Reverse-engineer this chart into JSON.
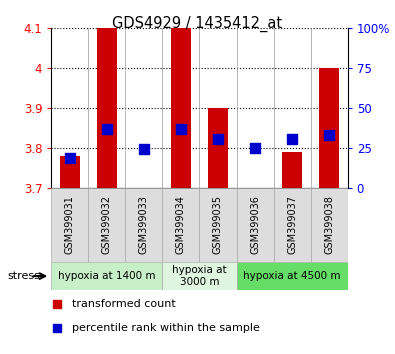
{
  "title": "GDS4929 / 1435412_at",
  "samples": [
    "GSM399031",
    "GSM399032",
    "GSM399033",
    "GSM399034",
    "GSM399035",
    "GSM399036",
    "GSM399037",
    "GSM399038"
  ],
  "transformed_count_bottom": [
    3.7,
    3.7,
    3.7,
    3.7,
    3.7,
    3.7,
    3.7,
    3.7
  ],
  "transformed_count_top": [
    3.78,
    4.1,
    3.7,
    4.1,
    3.9,
    3.7,
    3.79,
    4.0
  ],
  "percentile_rank": [
    3.775,
    3.848,
    3.796,
    3.848,
    3.822,
    3.8,
    3.822,
    3.832
  ],
  "ylim_left": [
    3.7,
    4.1
  ],
  "ylim_right": [
    0,
    100
  ],
  "yticks_left": [
    3.7,
    3.8,
    3.9,
    4.0,
    4.1
  ],
  "yticks_right": [
    0,
    25,
    50,
    75,
    100
  ],
  "ytick_labels_left": [
    "3.7",
    "3.8",
    "3.9",
    "4",
    "4.1"
  ],
  "ytick_labels_right": [
    "0",
    "25",
    "50",
    "75",
    "100%"
  ],
  "groups": [
    {
      "label": "hypoxia at 1400 m",
      "start": 0,
      "end": 3,
      "color": "#c8f0c8"
    },
    {
      "label": "hypoxia at\n3000 m",
      "start": 3,
      "end": 5,
      "color": "#dff5df"
    },
    {
      "label": "hypoxia at 4500 m",
      "start": 5,
      "end": 8,
      "color": "#66dd66"
    }
  ],
  "bar_color": "#cc0000",
  "point_color": "#0000cc",
  "bar_width": 0.55,
  "point_size": 45,
  "legend_bar_color": "#cc0000",
  "legend_point_color": "#0000cc",
  "stress_label": "stress",
  "legend_items": [
    "transformed count",
    "percentile rank within the sample"
  ]
}
